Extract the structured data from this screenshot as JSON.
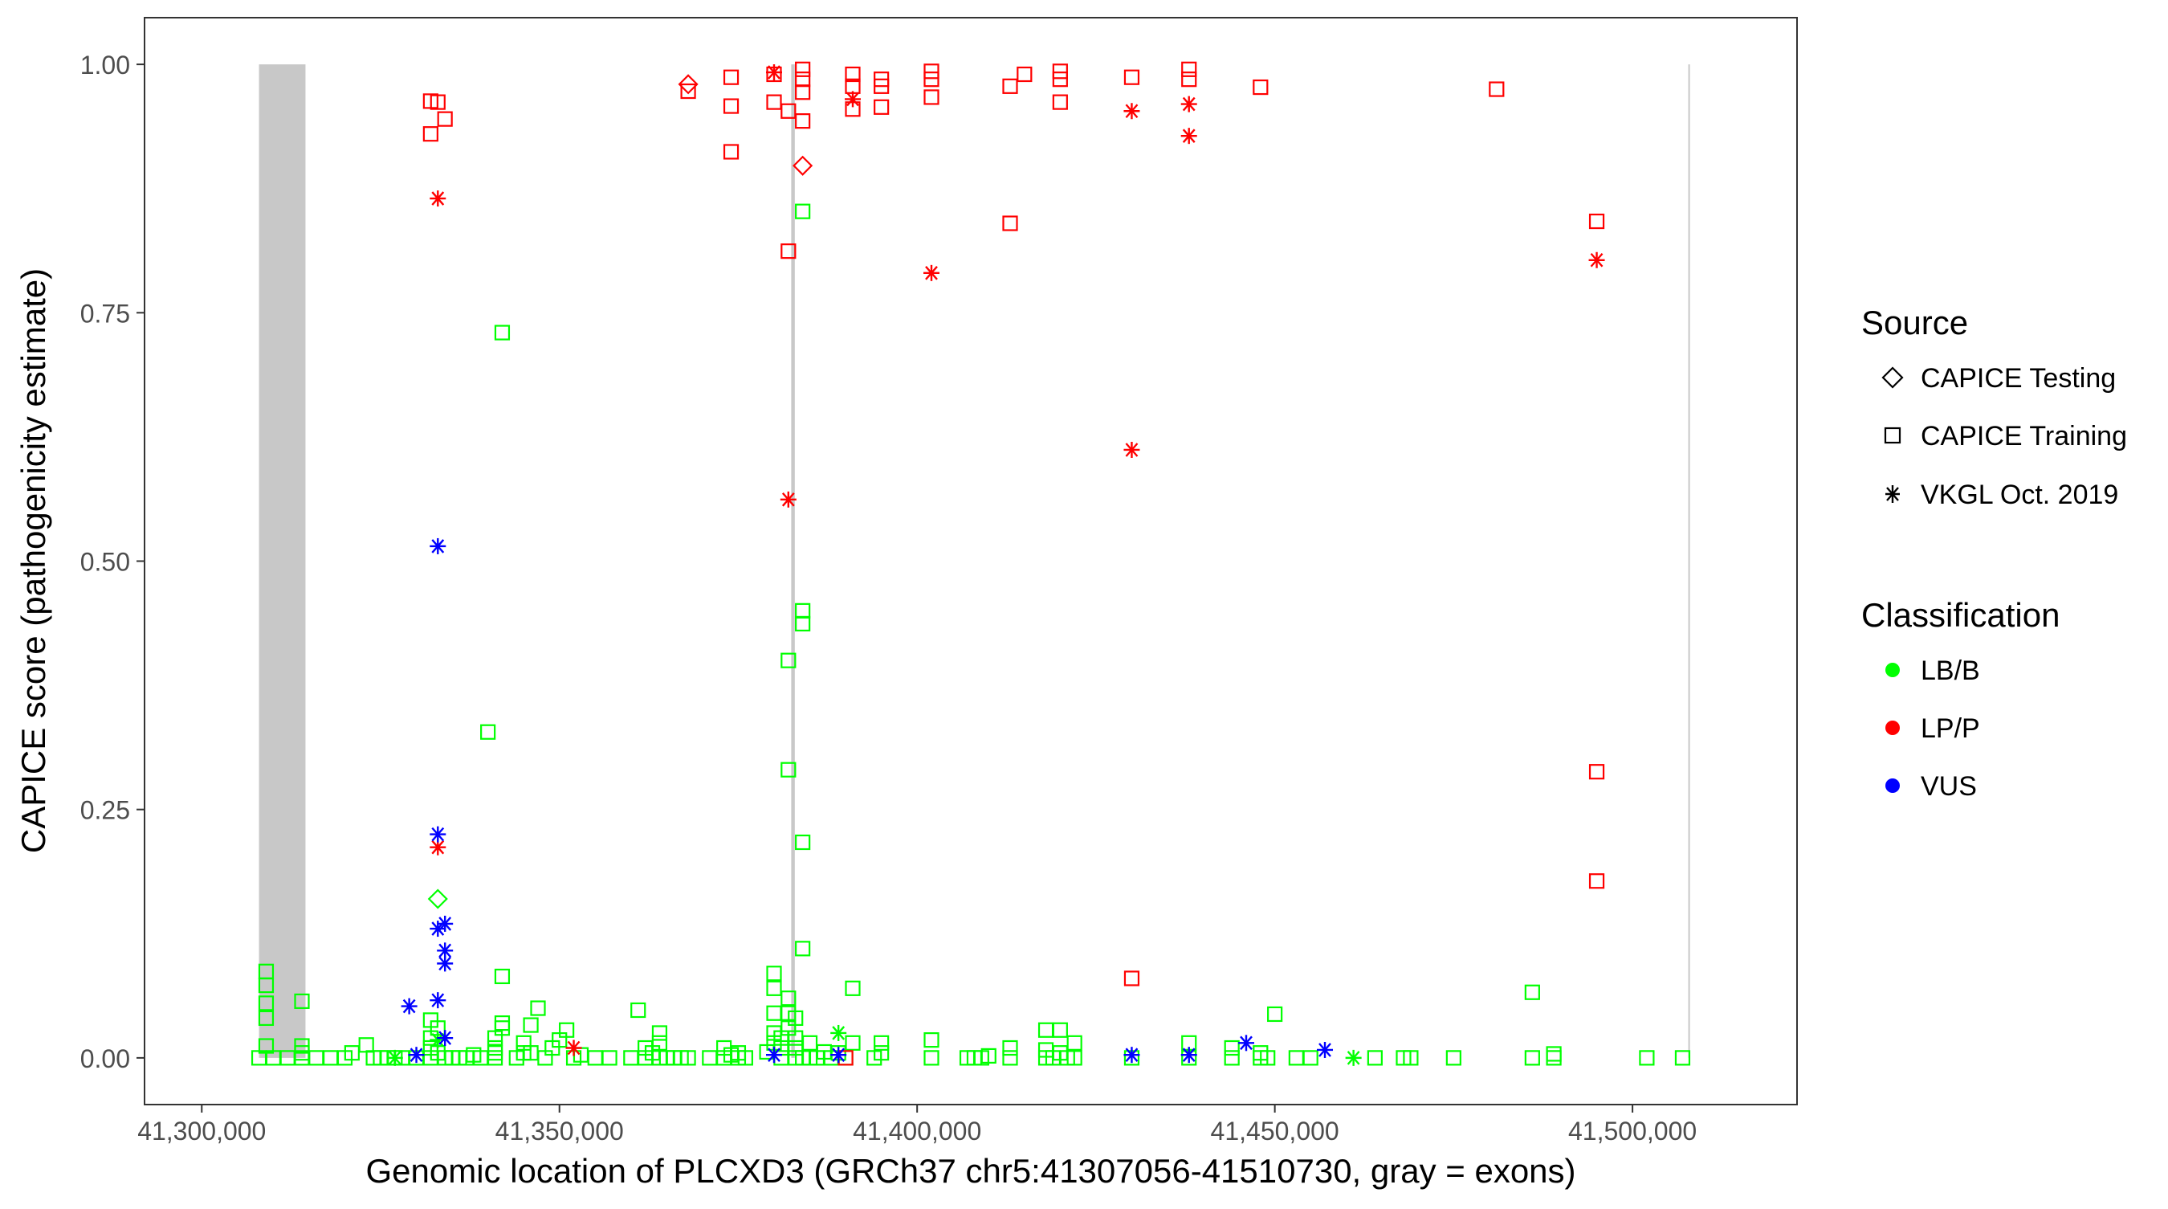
{
  "chart_data": {
    "type": "scatter",
    "xlabel": "Genomic location of PLCXD3 (GRCh37 chr5:41307056-41510730, gray = exons)",
    "ylabel": "CAPICE score (pathogenicity estimate)",
    "xlim": [
      41292000,
      41523000
    ],
    "ylim": [
      -0.047,
      1.047
    ],
    "x_ticks": [
      41300000,
      41350000,
      41400000,
      41450000,
      41500000
    ],
    "x_tick_labels": [
      "41,300,000",
      "41,350,000",
      "41,400,000",
      "41,450,000",
      "41,500,000"
    ],
    "y_ticks": [
      0,
      0.25,
      0.5,
      0.75,
      1.0
    ],
    "y_tick_labels": [
      "0.00",
      "0.25",
      "0.50",
      "0.75",
      "1.00"
    ],
    "grid": false,
    "exons": [
      {
        "start": 41308000,
        "end": 41314500
      },
      {
        "start": 41382400,
        "end": 41382900
      },
      {
        "start": 41507800,
        "end": 41508000
      }
    ],
    "legend": {
      "placement": "right",
      "source_title": "Source",
      "source_items": [
        {
          "label": "CAPICE Testing",
          "shape": "diamond"
        },
        {
          "label": "CAPICE Training",
          "shape": "square"
        },
        {
          "label": "VKGL Oct. 2019",
          "shape": "asterisk"
        }
      ],
      "class_title": "Classification",
      "class_items": [
        {
          "label": "LB/B",
          "color": "#00ff00"
        },
        {
          "label": "LP/P",
          "color": "#ff0000"
        },
        {
          "label": "VUS",
          "color": "#0000ff"
        }
      ]
    },
    "points": [
      [
        41308000,
        0,
        "T",
        "B"
      ],
      [
        41309000,
        0.012,
        "T",
        "B"
      ],
      [
        41309000,
        0.04,
        "T",
        "B"
      ],
      [
        41309000,
        0.055,
        "T",
        "B"
      ],
      [
        41309000,
        0.073,
        "T",
        "B"
      ],
      [
        41309000,
        0.087,
        "T",
        "B"
      ],
      [
        41310000,
        0,
        "T",
        "B"
      ],
      [
        41312000,
        0,
        "T",
        "B"
      ],
      [
        41314000,
        0,
        "T",
        "B"
      ],
      [
        41314000,
        0.005,
        "T",
        "B"
      ],
      [
        41314000,
        0.012,
        "T",
        "B"
      ],
      [
        41314000,
        0.057,
        "T",
        "B"
      ],
      [
        41316000,
        0,
        "T",
        "B"
      ],
      [
        41318000,
        0,
        "T",
        "B"
      ],
      [
        41320000,
        0,
        "T",
        "B"
      ],
      [
        41321000,
        0.005,
        "T",
        "B"
      ],
      [
        41323000,
        0.013,
        "T",
        "B"
      ],
      [
        41324000,
        0,
        "T",
        "B"
      ],
      [
        41325000,
        0,
        "T",
        "B"
      ],
      [
        41326000,
        0,
        "T",
        "B"
      ],
      [
        41327000,
        0,
        "T",
        "B"
      ],
      [
        41328000,
        0,
        "T",
        "B"
      ],
      [
        41330000,
        0,
        "T",
        "B"
      ],
      [
        41332000,
        0,
        "T",
        "B"
      ],
      [
        41332000,
        0.01,
        "T",
        "B"
      ],
      [
        41332000,
        0.02,
        "T",
        "B"
      ],
      [
        41332000,
        0.038,
        "T",
        "B"
      ],
      [
        41333000,
        0.005,
        "T",
        "B"
      ],
      [
        41333000,
        0.03,
        "T",
        "B"
      ],
      [
        41334000,
        0,
        "T",
        "B"
      ],
      [
        41335000,
        0,
        "T",
        "B"
      ],
      [
        41336000,
        0,
        "T",
        "B"
      ],
      [
        41337000,
        0,
        "T",
        "B"
      ],
      [
        41338000,
        0.003,
        "T",
        "B"
      ],
      [
        41339000,
        0,
        "T",
        "B"
      ],
      [
        41340000,
        0.328,
        "T",
        "B"
      ],
      [
        41341000,
        0,
        "T",
        "B"
      ],
      [
        41341000,
        0.005,
        "T",
        "B"
      ],
      [
        41341000,
        0.01,
        "T",
        "B"
      ],
      [
        41341000,
        0.02,
        "T",
        "B"
      ],
      [
        41342000,
        0.03,
        "T",
        "B"
      ],
      [
        41342000,
        0.035,
        "T",
        "B"
      ],
      [
        41342000,
        0.082,
        "T",
        "B"
      ],
      [
        41342000,
        0.73,
        "T",
        "B"
      ],
      [
        41344000,
        0,
        "T",
        "B"
      ],
      [
        41345000,
        0.005,
        "T",
        "B"
      ],
      [
        41345000,
        0.015,
        "T",
        "B"
      ],
      [
        41346000,
        0.005,
        "T",
        "B"
      ],
      [
        41346000,
        0.033,
        "T",
        "B"
      ],
      [
        41347000,
        0.05,
        "T",
        "B"
      ],
      [
        41348000,
        0,
        "T",
        "B"
      ],
      [
        41349000,
        0.01,
        "T",
        "B"
      ],
      [
        41350000,
        0.018,
        "T",
        "B"
      ],
      [
        41351000,
        0.028,
        "T",
        "B"
      ],
      [
        41352000,
        0,
        "T",
        "B"
      ],
      [
        41353000,
        0.003,
        "T",
        "B"
      ],
      [
        41355000,
        0,
        "T",
        "B"
      ],
      [
        41357000,
        0,
        "T",
        "B"
      ],
      [
        41360000,
        0,
        "T",
        "B"
      ],
      [
        41361000,
        0.048,
        "T",
        "B"
      ],
      [
        41362000,
        0,
        "T",
        "B"
      ],
      [
        41362000,
        0.01,
        "T",
        "B"
      ],
      [
        41363000,
        0.005,
        "T",
        "B"
      ],
      [
        41364000,
        0,
        "T",
        "B"
      ],
      [
        41364000,
        0.015,
        "T",
        "B"
      ],
      [
        41364000,
        0.025,
        "T",
        "B"
      ],
      [
        41365000,
        0,
        "T",
        "B"
      ],
      [
        41366000,
        0,
        "T",
        "B"
      ],
      [
        41367000,
        0,
        "T",
        "B"
      ],
      [
        41368000,
        0,
        "T",
        "B"
      ],
      [
        41371000,
        0,
        "T",
        "B"
      ],
      [
        41373000,
        0,
        "T",
        "B"
      ],
      [
        41373000,
        0.01,
        "T",
        "B"
      ],
      [
        41374000,
        0.003,
        "T",
        "B"
      ],
      [
        41375000,
        0,
        "T",
        "B"
      ],
      [
        41375000,
        0.005,
        "T",
        "B"
      ],
      [
        41376000,
        0,
        "T",
        "B"
      ],
      [
        41379000,
        0.006,
        "T",
        "B"
      ],
      [
        41380000,
        0.015,
        "T",
        "B"
      ],
      [
        41380000,
        0.025,
        "T",
        "B"
      ],
      [
        41380000,
        0.045,
        "T",
        "B"
      ],
      [
        41380000,
        0.07,
        "T",
        "B"
      ],
      [
        41380000,
        0.085,
        "T",
        "B"
      ],
      [
        41381000,
        0,
        "T",
        "B"
      ],
      [
        41381000,
        0.01,
        "T",
        "B"
      ],
      [
        41381000,
        0.02,
        "T",
        "B"
      ],
      [
        41382000,
        0.03,
        "T",
        "B"
      ],
      [
        41382000,
        0.045,
        "T",
        "B"
      ],
      [
        41382000,
        0.06,
        "T",
        "B"
      ],
      [
        41382000,
        0.29,
        "T",
        "B"
      ],
      [
        41382000,
        0.4,
        "T",
        "B"
      ],
      [
        41383000,
        0,
        "T",
        "B"
      ],
      [
        41383000,
        0.01,
        "T",
        "B"
      ],
      [
        41383000,
        0.02,
        "T",
        "B"
      ],
      [
        41383000,
        0.04,
        "T",
        "B"
      ],
      [
        41384000,
        0,
        "T",
        "B"
      ],
      [
        41384000,
        0.11,
        "T",
        "B"
      ],
      [
        41384000,
        0.217,
        "T",
        "B"
      ],
      [
        41384000,
        0.437,
        "T",
        "B"
      ],
      [
        41384000,
        0.45,
        "T",
        "B"
      ],
      [
        41384000,
        0.852,
        "T",
        "B"
      ],
      [
        41385000,
        0,
        "T",
        "B"
      ],
      [
        41385000,
        0.015,
        "T",
        "B"
      ],
      [
        41386000,
        0,
        "T",
        "B"
      ],
      [
        41387000,
        0.006,
        "T",
        "B"
      ],
      [
        41388000,
        0,
        "T",
        "B"
      ],
      [
        41389000,
        0.005,
        "T",
        "B"
      ],
      [
        41390000,
        0,
        "T",
        "B"
      ],
      [
        41391000,
        0.07,
        "T",
        "B"
      ],
      [
        41391000,
        0.015,
        "T",
        "B"
      ],
      [
        41394000,
        0,
        "T",
        "B"
      ],
      [
        41395000,
        0.005,
        "T",
        "B"
      ],
      [
        41395000,
        0.015,
        "T",
        "B"
      ],
      [
        41402000,
        0,
        "T",
        "B"
      ],
      [
        41402000,
        0.018,
        "T",
        "B"
      ],
      [
        41407000,
        0,
        "T",
        "B"
      ],
      [
        41408000,
        0,
        "T",
        "B"
      ],
      [
        41409000,
        0,
        "T",
        "B"
      ],
      [
        41410000,
        0.002,
        "T",
        "B"
      ],
      [
        41413000,
        0,
        "T",
        "B"
      ],
      [
        41413000,
        0.01,
        "T",
        "B"
      ],
      [
        41418000,
        0,
        "T",
        "B"
      ],
      [
        41418000,
        0.008,
        "T",
        "B"
      ],
      [
        41418000,
        0.028,
        "T",
        "B"
      ],
      [
        41419000,
        0,
        "T",
        "B"
      ],
      [
        41420000,
        0.005,
        "T",
        "B"
      ],
      [
        41420000,
        0.028,
        "T",
        "B"
      ],
      [
        41421000,
        0,
        "T",
        "B"
      ],
      [
        41422000,
        0,
        "T",
        "B"
      ],
      [
        41422000,
        0.015,
        "T",
        "B"
      ],
      [
        41430000,
        0,
        "T",
        "B"
      ],
      [
        41438000,
        0,
        "T",
        "B"
      ],
      [
        41438000,
        0.015,
        "T",
        "B"
      ],
      [
        41444000,
        0,
        "T",
        "B"
      ],
      [
        41444000,
        0.01,
        "T",
        "B"
      ],
      [
        41448000,
        0,
        "T",
        "B"
      ],
      [
        41448000,
        0.005,
        "T",
        "B"
      ],
      [
        41449000,
        0,
        "T",
        "B"
      ],
      [
        41450000,
        0.044,
        "T",
        "B"
      ],
      [
        41453000,
        0,
        "T",
        "B"
      ],
      [
        41455000,
        0,
        "T",
        "B"
      ],
      [
        41464000,
        0,
        "T",
        "B"
      ],
      [
        41468000,
        0,
        "T",
        "B"
      ],
      [
        41469000,
        0,
        "T",
        "B"
      ],
      [
        41475000,
        0,
        "T",
        "B"
      ],
      [
        41486000,
        0,
        "T",
        "B"
      ],
      [
        41486000,
        0.066,
        "T",
        "B"
      ],
      [
        41489000,
        0,
        "T",
        "B"
      ],
      [
        41489000,
        0.004,
        "T",
        "B"
      ],
      [
        41502000,
        0,
        "T",
        "B"
      ],
      [
        41507000,
        0,
        "T",
        "B"
      ],
      [
        41332000,
        0.93,
        "T",
        "P"
      ],
      [
        41332000,
        0.963,
        "T",
        "P"
      ],
      [
        41333000,
        0.962,
        "T",
        "P"
      ],
      [
        41334000,
        0.945,
        "T",
        "P"
      ],
      [
        41368000,
        0.973,
        "T",
        "P"
      ],
      [
        41374000,
        0.912,
        "T",
        "P"
      ],
      [
        41374000,
        0.958,
        "T",
        "P"
      ],
      [
        41374000,
        0.987,
        "T",
        "P"
      ],
      [
        41380000,
        0.962,
        "T",
        "P"
      ],
      [
        41380000,
        0.99,
        "T",
        "P"
      ],
      [
        41382000,
        0.953,
        "T",
        "P"
      ],
      [
        41382000,
        0.812,
        "T",
        "P"
      ],
      [
        41384000,
        0.943,
        "T",
        "P"
      ],
      [
        41384000,
        0.972,
        "T",
        "P"
      ],
      [
        41384000,
        0.985,
        "T",
        "P"
      ],
      [
        41384000,
        0.995,
        "T",
        "P"
      ],
      [
        41390000,
        0,
        "T",
        "P"
      ],
      [
        41391000,
        0.955,
        "T",
        "P"
      ],
      [
        41391000,
        0.978,
        "T",
        "P"
      ],
      [
        41391000,
        0.99,
        "T",
        "P"
      ],
      [
        41395000,
        0.957,
        "T",
        "P"
      ],
      [
        41395000,
        0.978,
        "T",
        "P"
      ],
      [
        41395000,
        0.985,
        "T",
        "P"
      ],
      [
        41402000,
        0.967,
        "T",
        "P"
      ],
      [
        41402000,
        0.985,
        "T",
        "P"
      ],
      [
        41402000,
        0.993,
        "T",
        "P"
      ],
      [
        41413000,
        0.84,
        "T",
        "P"
      ],
      [
        41413000,
        0.978,
        "T",
        "P"
      ],
      [
        41415000,
        0.99,
        "T",
        "P"
      ],
      [
        41420000,
        0.962,
        "T",
        "P"
      ],
      [
        41420000,
        0.985,
        "T",
        "P"
      ],
      [
        41420000,
        0.993,
        "T",
        "P"
      ],
      [
        41430000,
        0.08,
        "T",
        "P"
      ],
      [
        41430000,
        0.987,
        "T",
        "P"
      ],
      [
        41438000,
        0.985,
        "T",
        "P"
      ],
      [
        41438000,
        0.995,
        "T",
        "P"
      ],
      [
        41448000,
        0.977,
        "T",
        "P"
      ],
      [
        41481000,
        0.975,
        "T",
        "P"
      ],
      [
        41495000,
        0.178,
        "T",
        "P"
      ],
      [
        41495000,
        0.288,
        "T",
        "P"
      ],
      [
        41495000,
        0.842,
        "T",
        "P"
      ],
      [
        41333000,
        0.16,
        "D",
        "B"
      ],
      [
        41368000,
        0.98,
        "D",
        "P"
      ],
      [
        41384000,
        0.898,
        "D",
        "P"
      ],
      [
        41327000,
        0,
        "V",
        "B"
      ],
      [
        41333000,
        0.018,
        "V",
        "B"
      ],
      [
        41389000,
        0.025,
        "V",
        "B"
      ],
      [
        41461000,
        0,
        "V",
        "B"
      ],
      [
        41352000,
        0.01,
        "V",
        "P"
      ],
      [
        41333000,
        0.212,
        "V",
        "P"
      ],
      [
        41333000,
        0.865,
        "V",
        "P"
      ],
      [
        41380000,
        0.992,
        "V",
        "P"
      ],
      [
        41382000,
        0.562,
        "V",
        "P"
      ],
      [
        41391000,
        0.965,
        "V",
        "P"
      ],
      [
        41402000,
        0.79,
        "V",
        "P"
      ],
      [
        41430000,
        0.612,
        "V",
        "P"
      ],
      [
        41430000,
        0.953,
        "V",
        "P"
      ],
      [
        41438000,
        0.928,
        "V",
        "P"
      ],
      [
        41438000,
        0.96,
        "V",
        "P"
      ],
      [
        41495000,
        0.803,
        "V",
        "P"
      ],
      [
        41329000,
        0.052,
        "V",
        "U"
      ],
      [
        41330000,
        0.003,
        "V",
        "U"
      ],
      [
        41333000,
        0.058,
        "V",
        "U"
      ],
      [
        41333000,
        0.515,
        "V",
        "U"
      ],
      [
        41333000,
        0.225,
        "V",
        "U"
      ],
      [
        41333000,
        0.13,
        "V",
        "U"
      ],
      [
        41334000,
        0.135,
        "V",
        "U"
      ],
      [
        41334000,
        0.108,
        "V",
        "U"
      ],
      [
        41334000,
        0.095,
        "V",
        "U"
      ],
      [
        41334000,
        0.02,
        "V",
        "U"
      ],
      [
        41380000,
        0.003,
        "V",
        "U"
      ],
      [
        41389000,
        0.003,
        "V",
        "U"
      ],
      [
        41430000,
        0.003,
        "V",
        "U"
      ],
      [
        41438000,
        0.003,
        "V",
        "U"
      ],
      [
        41446000,
        0.015,
        "V",
        "U"
      ],
      [
        41457000,
        0.008,
        "V",
        "U"
      ]
    ]
  }
}
